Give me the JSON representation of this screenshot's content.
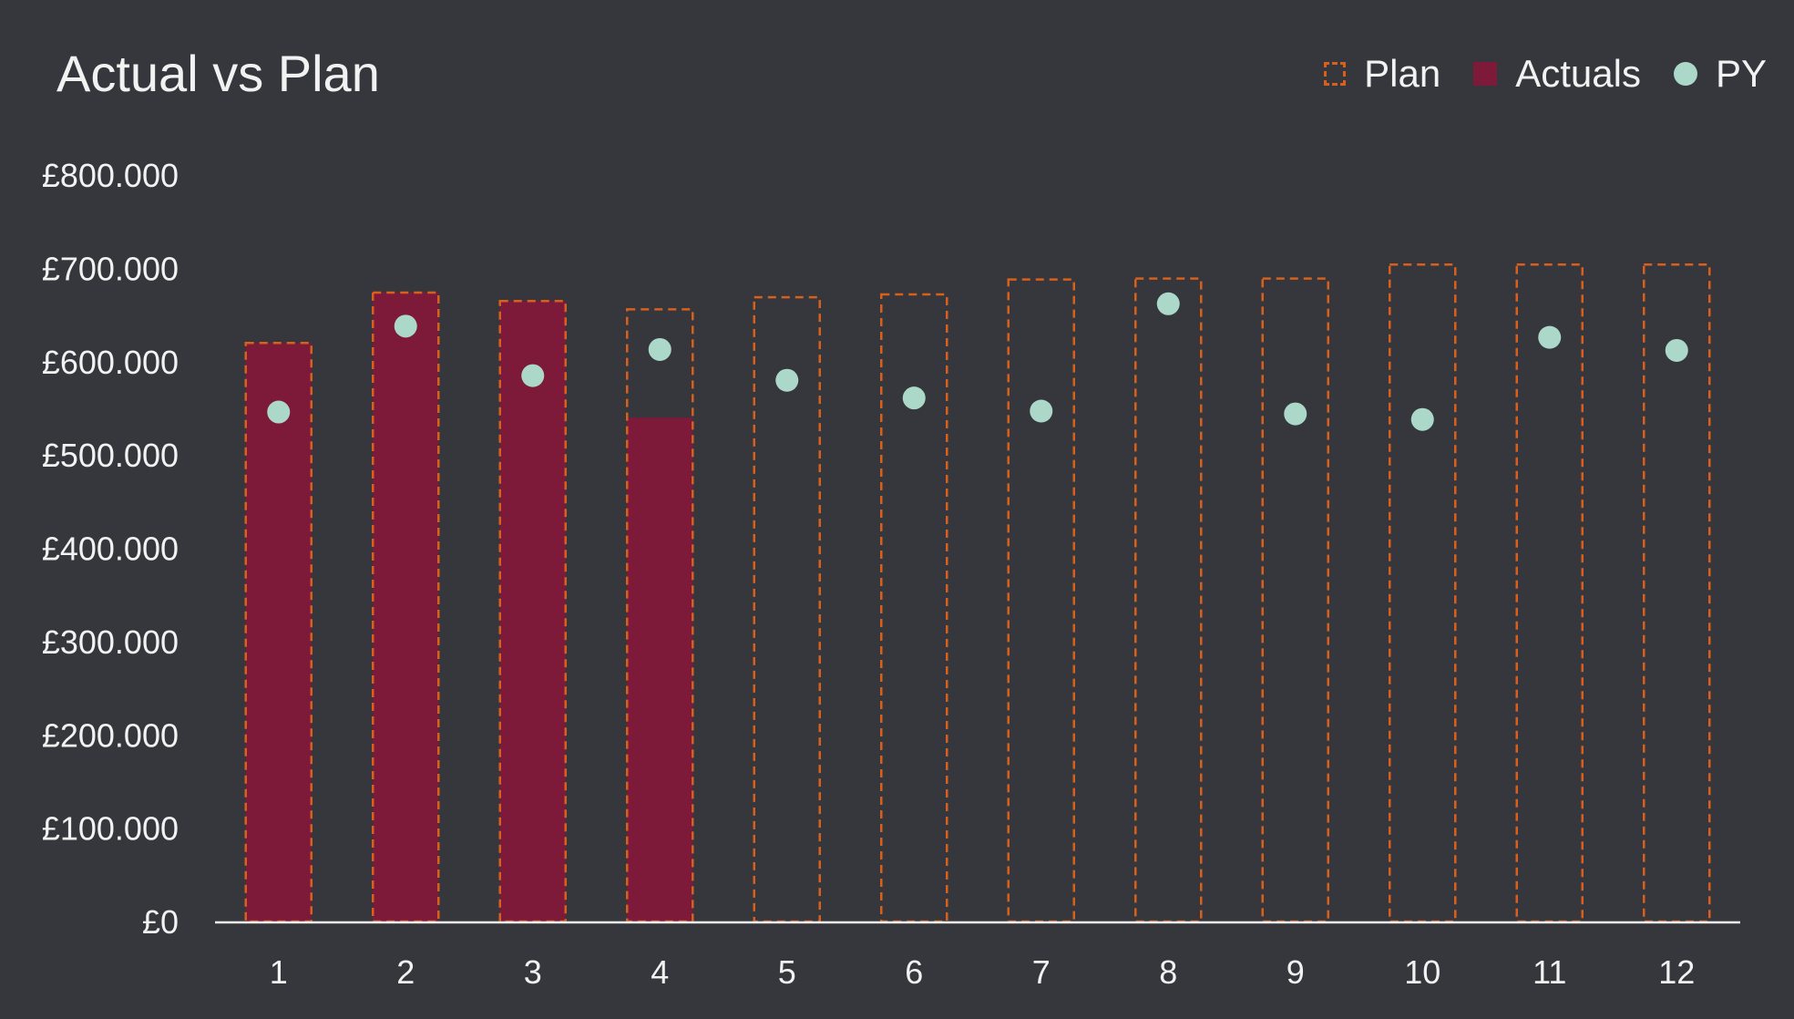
{
  "chart_data": {
    "type": "bar",
    "title": "Actual vs Plan",
    "categories": [
      "1",
      "2",
      "3",
      "4",
      "5",
      "6",
      "7",
      "8",
      "9",
      "10",
      "11",
      "12"
    ],
    "series": [
      {
        "name": "Plan",
        "style": "dashed-outline",
        "color": "#d8601c",
        "values": [
          620000,
          674000,
          665000,
          656000,
          669000,
          672000,
          688000,
          689000,
          689000,
          704000,
          704000,
          704000
        ]
      },
      {
        "name": "Actuals",
        "style": "filled-bar",
        "color": "#7e1a39",
        "values": [
          620000,
          674000,
          665000,
          540000,
          null,
          null,
          null,
          null,
          null,
          null,
          null,
          null
        ]
      },
      {
        "name": "PY",
        "style": "marker",
        "color": "#abd8c8",
        "values": [
          546000,
          638000,
          585000,
          613000,
          580000,
          561000,
          547000,
          662000,
          544000,
          538000,
          626000,
          612000
        ]
      }
    ],
    "ylim": [
      0,
      800000
    ],
    "yticks": [
      0,
      100000,
      200000,
      300000,
      400000,
      500000,
      600000,
      700000,
      800000
    ],
    "ytick_labels": [
      "£0",
      "£100.000",
      "£200.000",
      "£300.000",
      "£400.000",
      "£500.000",
      "£600.000",
      "£700.000",
      "£800.000"
    ],
    "xlabel": "",
    "ylabel": "",
    "grid": false,
    "legend_position": "top-right"
  },
  "legend": {
    "plan_label": "Plan",
    "actuals_label": "Actuals",
    "py_label": "PY"
  },
  "colors": {
    "background": "#36373c",
    "plan": "#d8601c",
    "actuals": "#7e1a39",
    "py": "#abd8c8",
    "axis": "#f2f2f2"
  }
}
